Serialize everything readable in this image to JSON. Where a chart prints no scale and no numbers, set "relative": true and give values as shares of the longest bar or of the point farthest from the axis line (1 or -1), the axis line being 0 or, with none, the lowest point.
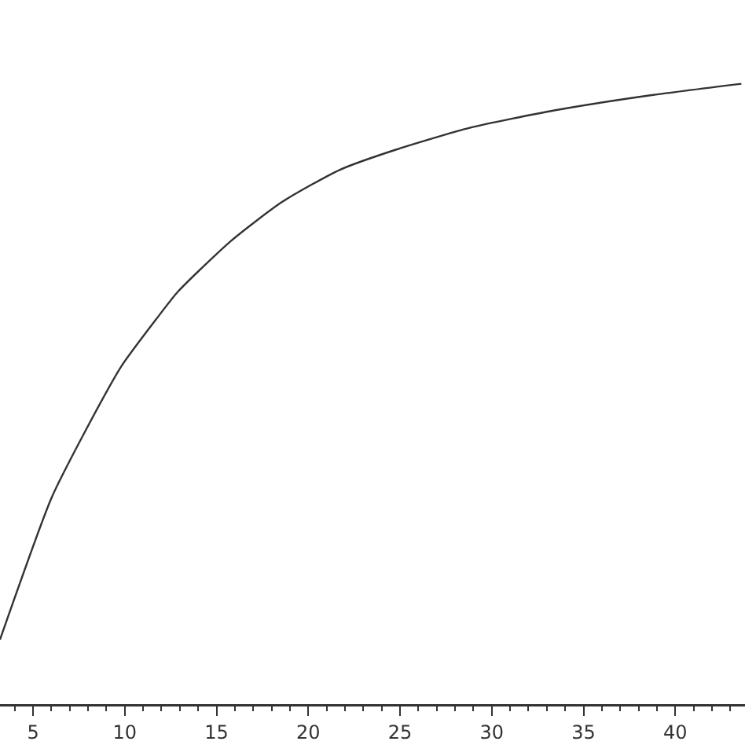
{
  "chart_data": {
    "type": "line",
    "relative": true,
    "xlim": [
      3.2,
      43.8
    ],
    "xticks": [
      5,
      10,
      15,
      20,
      25,
      30,
      35,
      40
    ],
    "series": [
      {
        "color": "#333333",
        "x": [
          3.2,
          6.0,
          7.9,
          9.8,
          11.7,
          12.9,
          15.8,
          18.6,
          21.7,
          24.8,
          28.8,
          33.4,
          38.8,
          43.6
        ],
        "values": [
          0.104,
          0.332,
          0.443,
          0.544,
          0.62,
          0.665,
          0.747,
          0.81,
          0.861,
          0.894,
          0.929,
          0.957,
          0.982,
          1.0
        ]
      }
    ],
    "grid": false,
    "marker": "none",
    "line_style": "solid"
  }
}
